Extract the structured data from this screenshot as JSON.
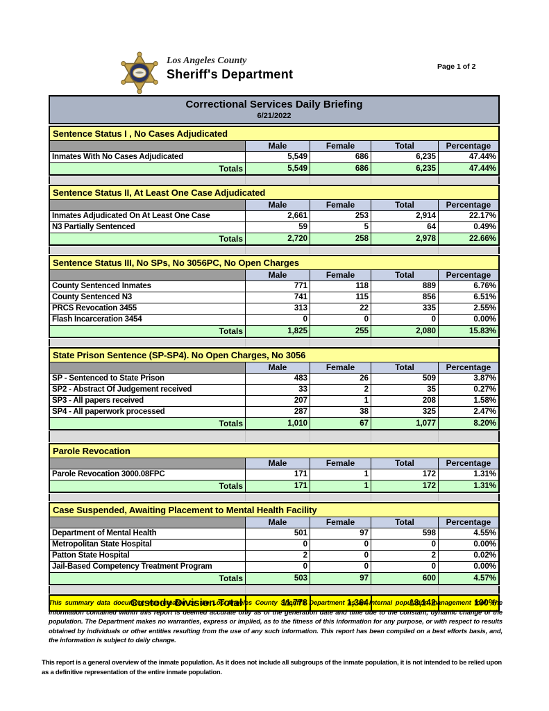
{
  "header": {
    "agency_line1": "Los Angeles County",
    "agency_line2": "Sheriff's Department",
    "page_label": "Page 1 of 2",
    "badge_icon": "sheriff-star-badge"
  },
  "report": {
    "title": "Correctional Services Daily Briefing",
    "date": "6/21/2022"
  },
  "columns": [
    "Male",
    "Female",
    "Total",
    "Percentage"
  ],
  "totals_label": "Totals",
  "sections": [
    {
      "title": "Sentence Status I , No Cases Adjudicated",
      "rows": [
        {
          "label": "Inmates With No Cases Adjudicated",
          "male": "5,549",
          "female": "686",
          "total": "6,235",
          "percentage": "47.44%"
        }
      ],
      "totals": {
        "male": "5,549",
        "female": "686",
        "total": "6,235",
        "percentage": "47.44%"
      }
    },
    {
      "title": "Sentence Status II, At Least One Case Adjudicated",
      "rows": [
        {
          "label": "Inmates Adjudicated On At Least One Case",
          "male": "2,661",
          "female": "253",
          "total": "2,914",
          "percentage": "22.17%"
        },
        {
          "label": "N3 Partially Sentenced",
          "male": "59",
          "female": "5",
          "total": "64",
          "percentage": "0.49%"
        }
      ],
      "totals": {
        "male": "2,720",
        "female": "258",
        "total": "2,978",
        "percentage": "22.66%"
      }
    },
    {
      "title": "Sentence Status III, No SPs, No 3056PC, No Open Charges",
      "rows": [
        {
          "label": "County Sentenced Inmates",
          "male": "771",
          "female": "118",
          "total": "889",
          "percentage": "6.76%"
        },
        {
          "label": "County Sentenced N3",
          "male": "741",
          "female": "115",
          "total": "856",
          "percentage": "6.51%"
        },
        {
          "label": "PRCS Revocation 3455",
          "male": "313",
          "female": "22",
          "total": "335",
          "percentage": "2.55%"
        },
        {
          "label": "Flash Incarceration 3454",
          "male": "0",
          "female": "0",
          "total": "0",
          "percentage": "0.00%"
        }
      ],
      "totals": {
        "male": "1,825",
        "female": "255",
        "total": "2,080",
        "percentage": "15.83%"
      }
    },
    {
      "title": "State Prison Sentence (SP-SP4). No Open Charges, No 3056",
      "rows": [
        {
          "label": "SP - Sentenced to State Prison",
          "male": "483",
          "female": "26",
          "total": "509",
          "percentage": "3.87%"
        },
        {
          "label": "SP2 - Abstract Of Judgement received",
          "male": "33",
          "female": "2",
          "total": "35",
          "percentage": "0.27%"
        },
        {
          "label": "SP3 - All papers received",
          "male": "207",
          "female": "1",
          "total": "208",
          "percentage": "1.58%"
        },
        {
          "label": "SP4 - All paperwork processed",
          "male": "287",
          "female": "38",
          "total": "325",
          "percentage": "2.47%"
        }
      ],
      "totals": {
        "male": "1,010",
        "female": "67",
        "total": "1,077",
        "percentage": "8.20%"
      }
    },
    {
      "title": "Parole Revocation",
      "rows": [
        {
          "label": "Parole Revocation 3000.08FPC",
          "male": "171",
          "female": "1",
          "total": "172",
          "percentage": "1.31%"
        }
      ],
      "totals": {
        "male": "171",
        "female": "1",
        "total": "172",
        "percentage": "1.31%"
      }
    },
    {
      "title": "Case Suspended, Awaiting Placement to Mental Health Facility",
      "rows": [
        {
          "label": "Department of Mental Health",
          "male": "501",
          "female": "97",
          "total": "598",
          "percentage": "4.55%"
        },
        {
          "label": "Metropolitan State Hospital",
          "male": "0",
          "female": "0",
          "total": "0",
          "percentage": "0.00%"
        },
        {
          "label": "Patton State Hospital",
          "male": "2",
          "female": "0",
          "total": "2",
          "percentage": "0.02%"
        },
        {
          "label": "Jail-Based Competency Treatment Program",
          "male": "0",
          "female": "0",
          "total": "0",
          "percentage": "0.00%"
        }
      ],
      "totals": {
        "male": "503",
        "female": "97",
        "total": "600",
        "percentage": "4.57%"
      }
    }
  ],
  "grand_total": {
    "label": "Custody Division Total",
    "male": "11,778",
    "female": "1,364",
    "total": "13,142",
    "percentage": "100%"
  },
  "footer": {
    "disclaimer": "This summary data document was created by the Los Angeles County Sheriff's Department as an internal population management tool.  The information contained within this report is deemed accurate only as of the generation date and time due to the constant, dynamic change of the population.  The Department makes no warranties, express or implied, as to the fitness of this information for any purpose, or with respect to results obtained by individuals or other entities resulting from the use of any such information.  This report has been compiled on a best efforts basis, and, the information is subject to daily change.",
    "note": "This report is a general overview of the inmate population.  As it does not include all subgroups of the inmate population, it is not intended to be relied upon as a definitive representation of the entire inmate population."
  },
  "colors": {
    "title_bar": "#AAB3C4",
    "section_header": "#FFFF99",
    "column_header": "#C8D1E6",
    "column_header_stub": "#9D9D9D",
    "totals_row": "#CCFFCC",
    "grand_total_row": "#FFFF00",
    "spacer": "#DCDCDC",
    "badge_gold": "#C7A54E",
    "badge_navy": "#2A3463"
  }
}
